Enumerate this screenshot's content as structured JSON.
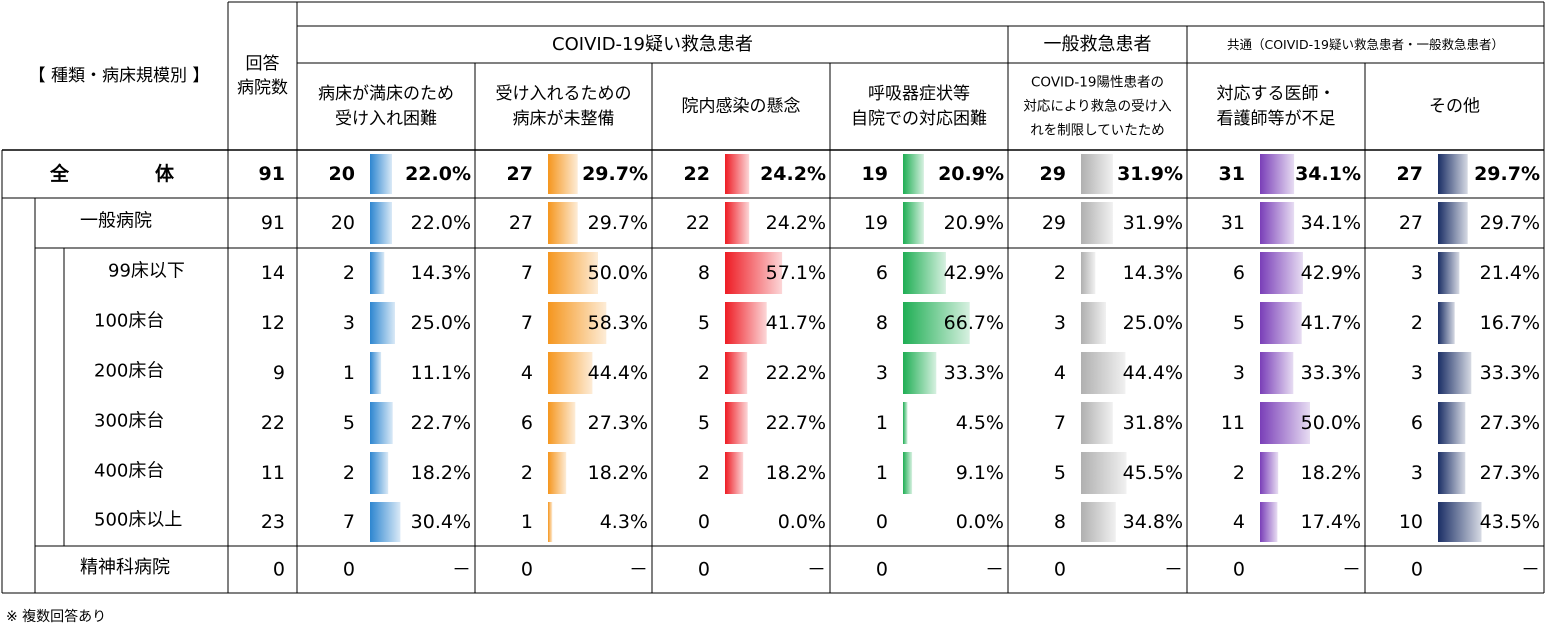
{
  "chart_data": {
    "type": "table",
    "headers": {
      "category": "【 種類・病床規模別 】",
      "respondents": [
        "回答",
        "病院数"
      ],
      "groups": [
        {
          "label": "COIVID-19疑い救急患者",
          "span": 4
        },
        {
          "label": "一般救急患者",
          "span": 1
        },
        {
          "label": "共通（COIVID-19疑い救急患者・一般救急患者）",
          "span": 2
        }
      ],
      "columns": [
        [
          "病床が満床のため",
          "受け入れ困難"
        ],
        [
          "受け入れるための",
          "病床が未整備"
        ],
        [
          "院内感染の懸念"
        ],
        [
          "呼吸器症状等",
          "自院での対応困難"
        ],
        [
          "COVID-19陽性患者の",
          "対応により救急の受け入",
          "れを制限していたため"
        ],
        [
          "対応する医師・",
          "看護師等が不足"
        ],
        [
          "その他"
        ]
      ]
    },
    "column_colors": [
      "#2e86d0",
      "#f5961e",
      "#ee1c24",
      "#1fae54",
      "#b0b0b0",
      "#7a3fb8",
      "#1b2f66"
    ],
    "rows": [
      {
        "label": "全　　　体",
        "level": 0,
        "bold": true,
        "n": 91,
        "counts": [
          20,
          27,
          22,
          19,
          29,
          31,
          27
        ],
        "pcts": [
          "22.0%",
          "29.7%",
          "24.2%",
          "20.9%",
          "31.9%",
          "34.1%",
          "29.7%"
        ],
        "values": [
          22.0,
          29.7,
          24.2,
          20.9,
          31.9,
          34.1,
          29.7
        ]
      },
      {
        "label": "一般病院",
        "level": 1,
        "n": 91,
        "counts": [
          20,
          27,
          22,
          19,
          29,
          31,
          27
        ],
        "pcts": [
          "22.0%",
          "29.7%",
          "24.2%",
          "20.9%",
          "31.9%",
          "34.1%",
          "29.7%"
        ],
        "values": [
          22.0,
          29.7,
          24.2,
          20.9,
          31.9,
          34.1,
          29.7
        ]
      },
      {
        "label": "99床以下",
        "level": 2,
        "n": 14,
        "counts": [
          2,
          7,
          8,
          6,
          2,
          6,
          3
        ],
        "pcts": [
          "14.3%",
          "50.0%",
          "57.1%",
          "42.9%",
          "14.3%",
          "42.9%",
          "21.4%"
        ],
        "values": [
          14.3,
          50.0,
          57.1,
          42.9,
          14.3,
          42.9,
          21.4
        ]
      },
      {
        "label": "100床台",
        "level": 2,
        "n": 12,
        "counts": [
          3,
          7,
          5,
          8,
          3,
          5,
          2
        ],
        "pcts": [
          "25.0%",
          "58.3%",
          "41.7%",
          "66.7%",
          "25.0%",
          "41.7%",
          "16.7%"
        ],
        "values": [
          25.0,
          58.3,
          41.7,
          66.7,
          25.0,
          41.7,
          16.7
        ]
      },
      {
        "label": "200床台",
        "level": 2,
        "n": 9,
        "counts": [
          1,
          4,
          2,
          3,
          4,
          3,
          3
        ],
        "pcts": [
          "11.1%",
          "44.4%",
          "22.2%",
          "33.3%",
          "44.4%",
          "33.3%",
          "33.3%"
        ],
        "values": [
          11.1,
          44.4,
          22.2,
          33.3,
          44.4,
          33.3,
          33.3
        ]
      },
      {
        "label": "300床台",
        "level": 2,
        "n": 22,
        "counts": [
          5,
          6,
          5,
          1,
          7,
          11,
          6
        ],
        "pcts": [
          "22.7%",
          "27.3%",
          "22.7%",
          "4.5%",
          "31.8%",
          "50.0%",
          "27.3%"
        ],
        "values": [
          22.7,
          27.3,
          22.7,
          4.5,
          31.8,
          50.0,
          27.3
        ]
      },
      {
        "label": "400床台",
        "level": 2,
        "n": 11,
        "counts": [
          2,
          2,
          2,
          1,
          5,
          2,
          3
        ],
        "pcts": [
          "18.2%",
          "18.2%",
          "18.2%",
          "9.1%",
          "45.5%",
          "18.2%",
          "27.3%"
        ],
        "values": [
          18.2,
          18.2,
          18.2,
          9.1,
          45.5,
          18.2,
          27.3
        ]
      },
      {
        "label": "500床以上",
        "level": 2,
        "n": 23,
        "counts": [
          7,
          1,
          0,
          0,
          8,
          4,
          10
        ],
        "pcts": [
          "30.4%",
          "4.3%",
          "0.0%",
          "0.0%",
          "34.8%",
          "17.4%",
          "43.5%"
        ],
        "values": [
          30.4,
          4.3,
          0.0,
          0.0,
          34.8,
          17.4,
          43.5
        ]
      },
      {
        "label": "精神科病院",
        "level": 1,
        "n": 0,
        "counts": [
          0,
          0,
          0,
          0,
          0,
          0,
          0
        ],
        "pcts": [
          "－",
          "－",
          "－",
          "－",
          "－",
          "－",
          "－"
        ],
        "values": [
          null,
          null,
          null,
          null,
          null,
          null,
          null
        ]
      }
    ],
    "value_range": [
      0,
      100
    ]
  },
  "footnote": "※ 複数回答あり"
}
